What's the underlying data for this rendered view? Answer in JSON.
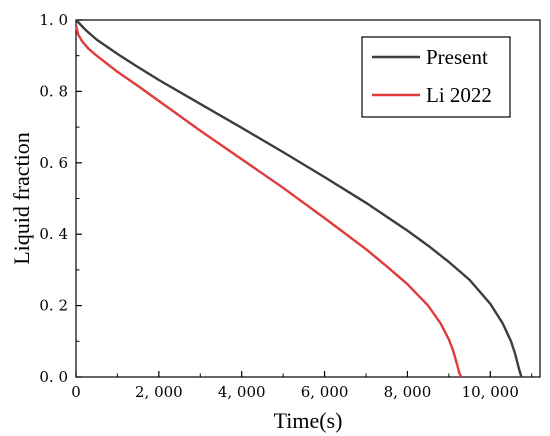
{
  "chart_data": {
    "type": "line",
    "xlabel": "Time(s)",
    "ylabel": "Liquid fraction",
    "xlim": [
      0,
      11200
    ],
    "ylim": [
      0,
      1.0
    ],
    "x_ticks": [
      {
        "value": 0,
        "label": "0"
      },
      {
        "value": 2000,
        "label": "2, 000"
      },
      {
        "value": 4000,
        "label": "4, 000"
      },
      {
        "value": 6000,
        "label": "6, 000"
      },
      {
        "value": 8000,
        "label": "8, 000"
      },
      {
        "value": 10000,
        "label": "10, 000"
      }
    ],
    "y_ticks": [
      {
        "value": 0.0,
        "label": "0. 0"
      },
      {
        "value": 0.2,
        "label": "0. 2"
      },
      {
        "value": 0.4,
        "label": "0. 4"
      },
      {
        "value": 0.6,
        "label": "0. 6"
      },
      {
        "value": 0.8,
        "label": "0. 8"
      },
      {
        "value": 1.0,
        "label": "1. 0"
      }
    ],
    "legend_position": "top-right",
    "grid": false,
    "series": [
      {
        "name": "Present",
        "color": "#3d3d3d",
        "x": [
          0,
          250,
          500,
          1000,
          1500,
          2000,
          3000,
          4000,
          5000,
          6000,
          7000,
          8000,
          8500,
          9000,
          9500,
          10000,
          10300,
          10500,
          10600,
          10700,
          10750
        ],
        "y": [
          1.0,
          0.97,
          0.945,
          0.905,
          0.868,
          0.832,
          0.765,
          0.698,
          0.63,
          0.56,
          0.488,
          0.41,
          0.368,
          0.322,
          0.272,
          0.205,
          0.15,
          0.1,
          0.065,
          0.02,
          0.0
        ]
      },
      {
        "name": "Li 2022",
        "color": "#e03a3a",
        "x": [
          0,
          50,
          150,
          300,
          500,
          1000,
          1500,
          2000,
          3000,
          4000,
          5000,
          6000,
          7000,
          7500,
          8000,
          8500,
          8800,
          9000,
          9100,
          9200,
          9250,
          9300
        ],
        "y": [
          0.985,
          0.96,
          0.94,
          0.92,
          0.9,
          0.855,
          0.815,
          0.773,
          0.69,
          0.61,
          0.53,
          0.445,
          0.358,
          0.31,
          0.26,
          0.2,
          0.15,
          0.105,
          0.075,
          0.035,
          0.012,
          0.0
        ]
      }
    ]
  }
}
